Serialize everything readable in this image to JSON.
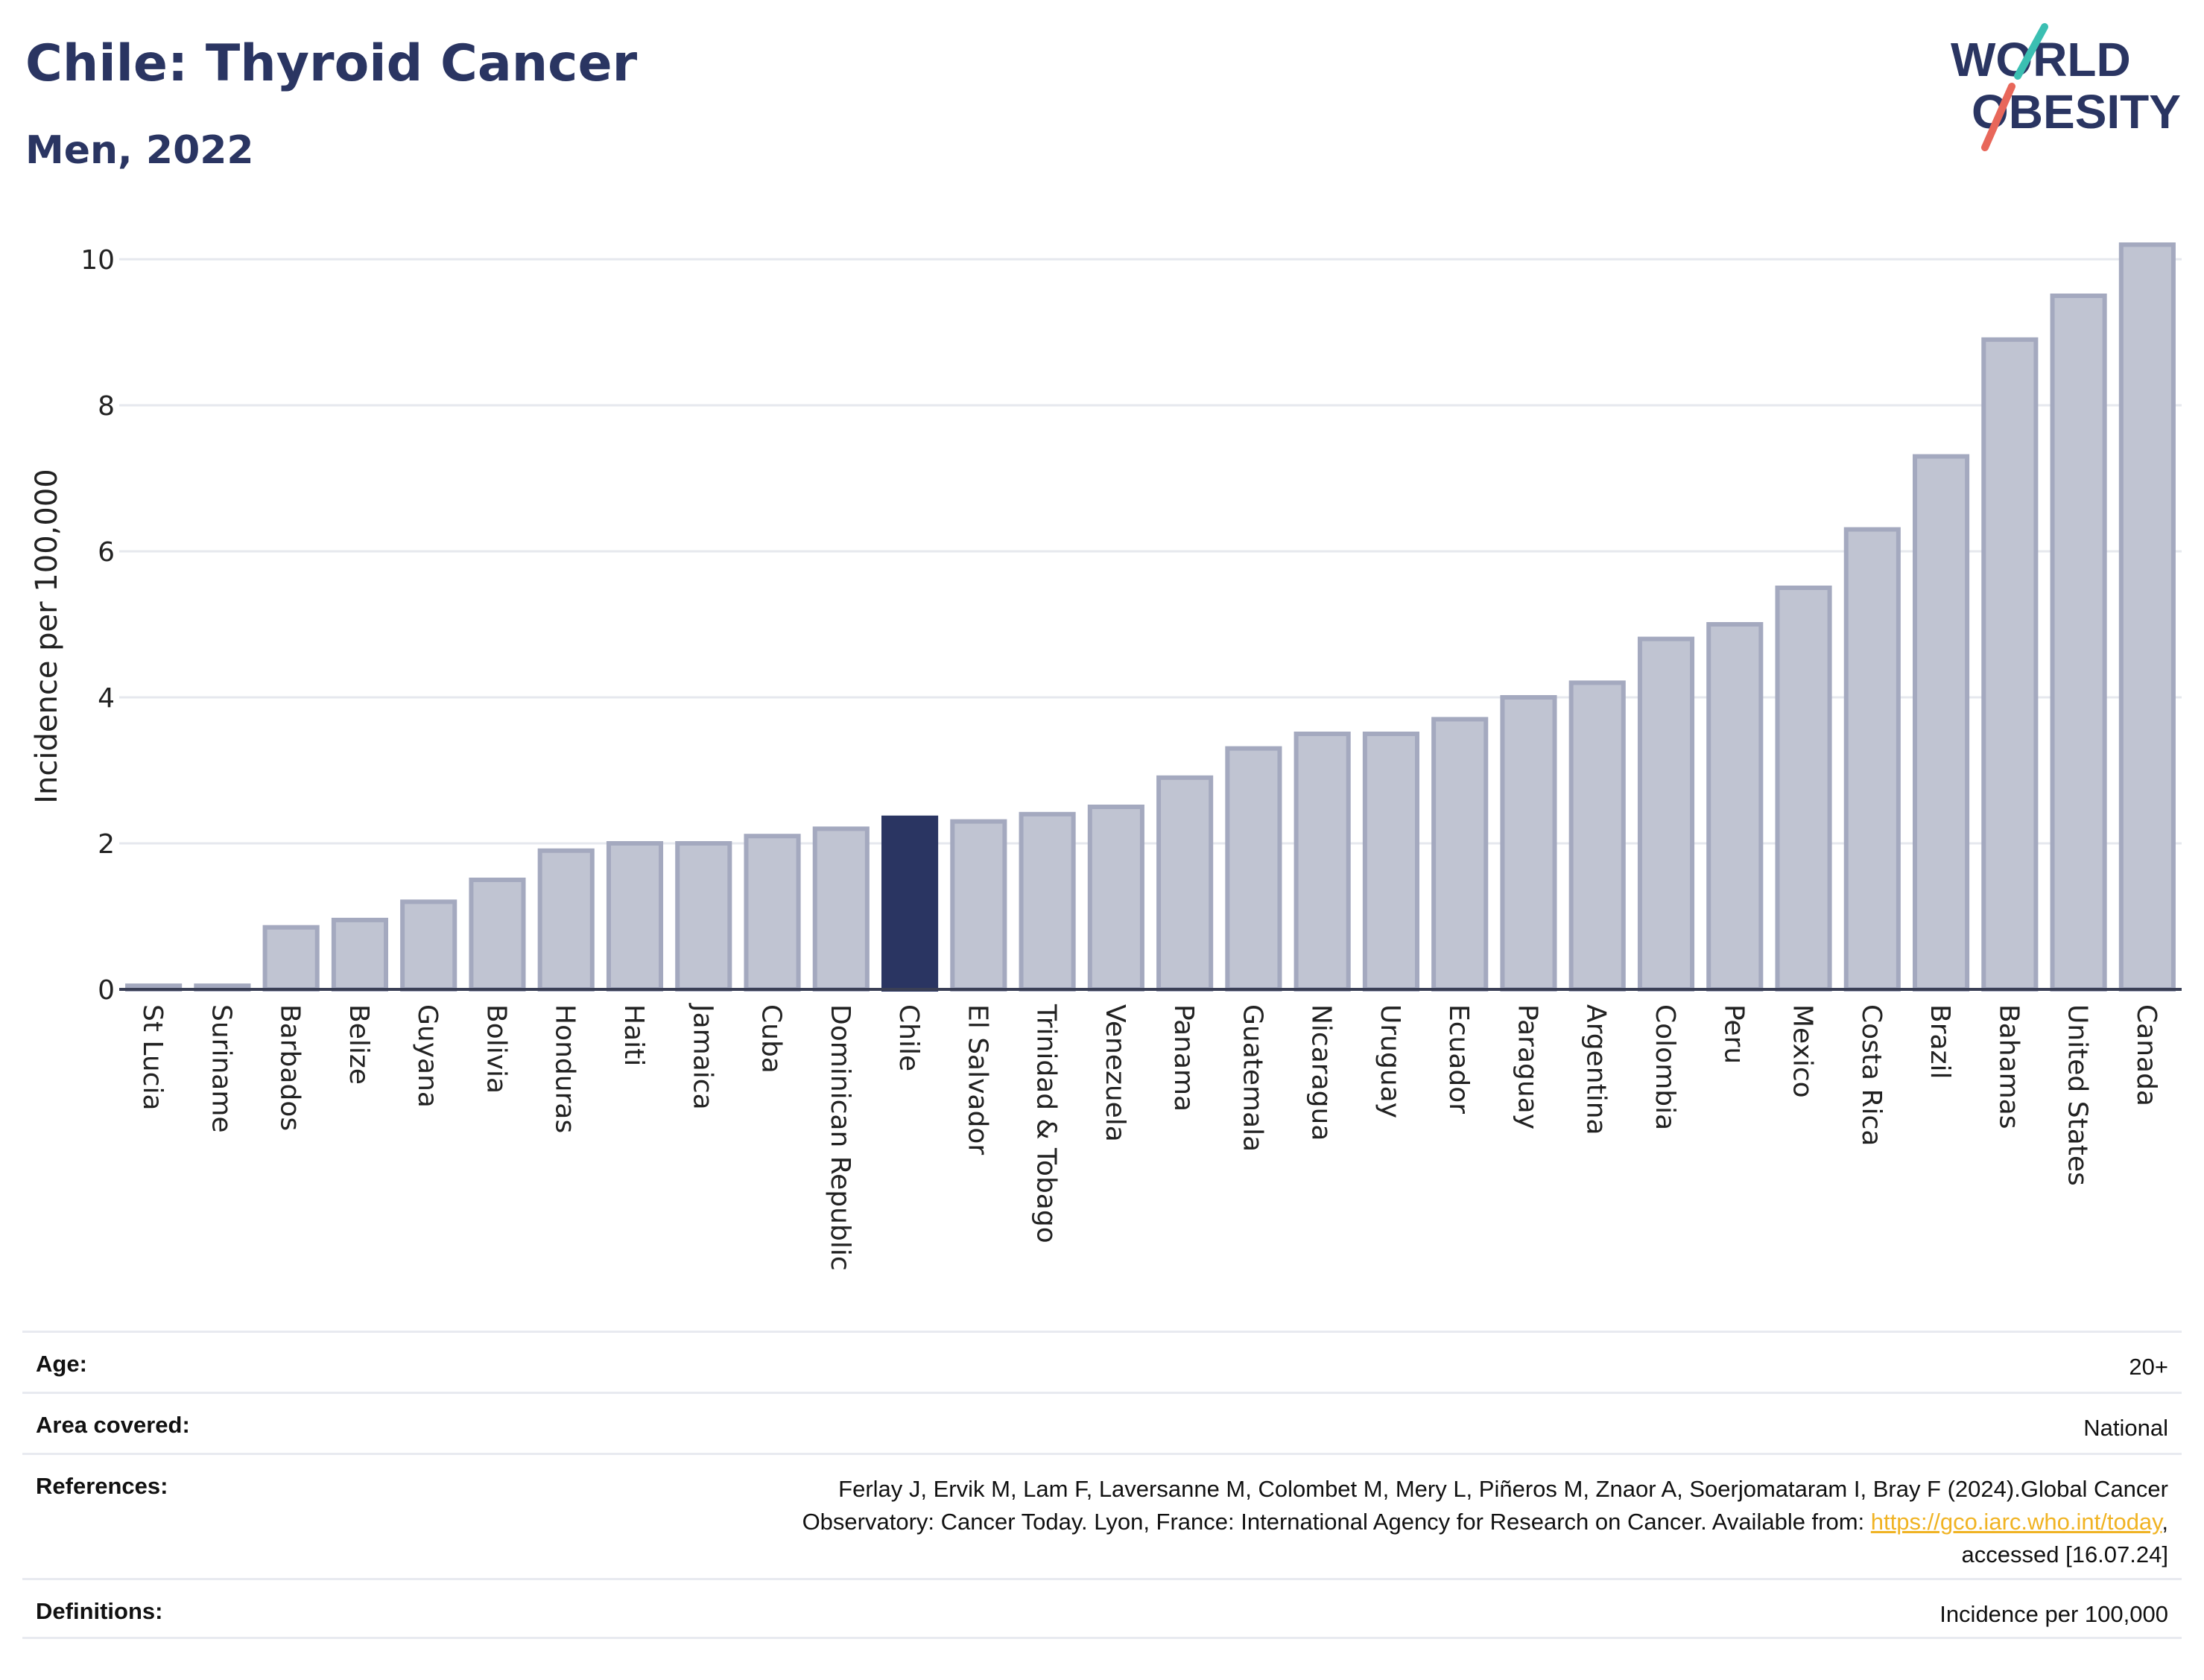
{
  "header": {
    "title": "Chile: Thyroid Cancer",
    "subtitle": "Men, 2022"
  },
  "logo": {
    "line1": "WORLD",
    "line2": "OBESITY",
    "accent_colors": [
      "#3bbfb2",
      "#e8675a"
    ]
  },
  "colors": {
    "highlight": "#2a3562",
    "bar_fill": "#c0c4d2",
    "bar_stroke": "#a4a9bf",
    "title": "#2a3562",
    "link": "#f0b323"
  },
  "chart_data": {
    "type": "bar",
    "ylabel": "Incidence per 100,000",
    "ylim": [
      0,
      10.5
    ],
    "yticks": [
      0,
      2,
      4,
      6,
      8,
      10
    ],
    "grid": true,
    "highlight": "Chile",
    "categories": [
      "St Lucia",
      "Suriname",
      "Barbados",
      "Belize",
      "Guyana",
      "Bolivia",
      "Honduras",
      "Haiti",
      "Jamaica",
      "Cuba",
      "Dominican Republic",
      "Chile",
      "El Salvador",
      "Trinidad & Tobago",
      "Venezuela",
      "Panama",
      "Guatemala",
      "Nicaragua",
      "Uruguay",
      "Ecuador",
      "Paraguay",
      "Argentina",
      "Colombia",
      "Peru",
      "Mexico",
      "Costa Rica",
      "Brazil",
      "Bahamas",
      "United States",
      "Canada"
    ],
    "values": [
      0.05,
      0.05,
      0.85,
      0.95,
      1.2,
      1.5,
      1.9,
      2.0,
      2.0,
      2.1,
      2.2,
      2.35,
      2.3,
      2.4,
      2.5,
      2.9,
      3.3,
      3.5,
      3.5,
      3.7,
      4.0,
      4.2,
      4.8,
      5.0,
      5.5,
      6.3,
      7.3,
      8.9,
      9.5,
      10.2
    ]
  },
  "meta": {
    "age_label": "Age:",
    "age_value": "20+",
    "area_label": "Area covered:",
    "area_value": "National",
    "references_label": "References:",
    "references_line1": "Ferlay J, Ervik M, Lam F, Laversanne M, Colombet M, Mery L, Piñeros M, Znaor A, Soerjomataram I, Bray F (2024).Global Cancer",
    "references_line2_pre": "Observatory: Cancer Today. Lyon, France: International Agency for Research on Cancer. Available from: ",
    "references_link": "https://gco.iarc.who.int/today",
    "references_line2_post": ",",
    "references_line3": "accessed [16.07.24]",
    "definitions_label": "Definitions:",
    "definitions_value": "Incidence per 100,000"
  }
}
